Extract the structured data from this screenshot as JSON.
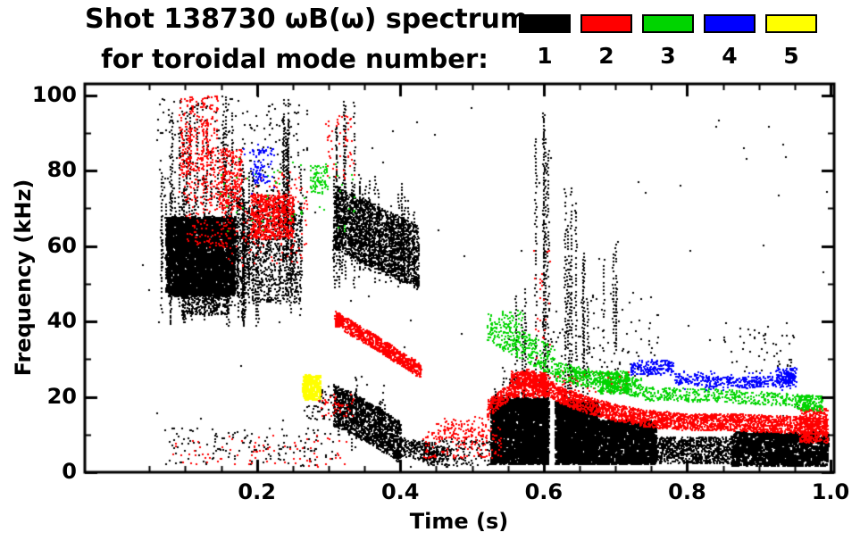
{
  "header": {
    "line1": "Shot 138730 ωB(ω) spectrum",
    "line2": "for toroidal mode number:"
  },
  "chart_data": {
    "type": "scatter",
    "subtype": "mode-spectrogram",
    "title": "Shot 138730 ωB(ω) spectrum for toroidal mode number 1-5",
    "xlabel": "Time (s)",
    "ylabel": "Frequency (kHz)",
    "xlim": [
      -0.04,
      1.005
    ],
    "ylim": [
      0,
      103
    ],
    "x_tick_values": [
      0.2,
      0.4,
      0.6,
      0.8,
      1.0
    ],
    "x_tick_labels": [
      "0.2",
      "0.4",
      "0.6",
      "0.8",
      "1.0"
    ],
    "x_minor_step": 0.05,
    "y_tick_values": [
      0,
      20,
      40,
      60,
      80,
      100
    ],
    "y_tick_labels": [
      "0",
      "20",
      "40",
      "60",
      "80",
      "100"
    ],
    "y_minor_values": [
      10,
      30,
      50,
      70,
      90
    ],
    "grid": false,
    "legend_position": "top-right",
    "series": [
      {
        "name": "toroidal mode n=1",
        "label": "1",
        "color": "#000000",
        "clusters": [
          {
            "type": "blob",
            "t": [
              0.072,
              0.168
            ],
            "f": [
              47,
              68
            ],
            "n": 2800,
            "size": 3
          },
          {
            "type": "blob",
            "t": [
              0.1,
              0.16
            ],
            "f": [
              42,
              50
            ],
            "n": 320,
            "size": 2
          },
          {
            "type": "vstreaks",
            "t": [
              0.065,
              0.265
            ],
            "f1": [
              38,
              58
            ],
            "f2": [
              60,
              82
            ],
            "k": 70,
            "size": 2
          },
          {
            "type": "vstreaks",
            "t": [
              0.08,
              0.165
            ],
            "f1": [
              68,
              80
            ],
            "f2": [
              85,
              100
            ],
            "k": 14,
            "size": 2
          },
          {
            "type": "vstreaks",
            "t": [
              0.233,
              0.25
            ],
            "f1": [
              52,
              65
            ],
            "f2": [
              88,
              100
            ],
            "k": 7,
            "size": 2
          },
          {
            "type": "dots",
            "t": [
              0.06,
              0.27
            ],
            "f": [
              72,
              100
            ],
            "n": 240,
            "size": 2
          },
          {
            "type": "blob",
            "t": [
              0.17,
              0.26
            ],
            "f": [
              45,
              72
            ],
            "n": 850,
            "size": 2
          },
          {
            "type": "dots",
            "t": [
              0.07,
              0.31
            ],
            "f": [
              1.5,
              12
            ],
            "n": 150,
            "size": 2
          },
          {
            "type": "dots",
            "t": [
              0.265,
              0.31
            ],
            "f": [
              14,
              23
            ],
            "n": 55,
            "size": 2
          },
          {
            "type": "band",
            "pts": [
              [
                0.307,
                68
              ],
              [
                0.36,
                63
              ],
              [
                0.425,
                57
              ]
            ],
            "th": 17,
            "n": 2000,
            "size": 2
          },
          {
            "type": "vstreaks",
            "t": [
              0.305,
              0.42
            ],
            "f1": [
              48,
              58
            ],
            "f2": [
              64,
              80
            ],
            "k": 40,
            "size": 2
          },
          {
            "type": "vstreaks",
            "t": [
              0.308,
              0.335
            ],
            "f1": [
              60,
              70
            ],
            "f2": [
              88,
              100
            ],
            "k": 6,
            "size": 2
          },
          {
            "type": "band",
            "pts": [
              [
                0.306,
                18
              ],
              [
                0.35,
                14
              ],
              [
                0.4,
                8
              ]
            ],
            "th": 11,
            "n": 1450,
            "size": 2
          },
          {
            "type": "band",
            "pts": [
              [
                0.4,
                7
              ],
              [
                0.468,
                4
              ]
            ],
            "th": 5,
            "n": 280,
            "size": 2
          },
          {
            "type": "vstreaks",
            "t": [
              0.31,
              0.38
            ],
            "f1": [
              6,
              12
            ],
            "f2": [
              16,
              26
            ],
            "k": 14,
            "size": 2
          },
          {
            "type": "dots",
            "t": [
              0.43,
              0.53
            ],
            "f": [
              2,
              9
            ],
            "n": 150,
            "size": 2
          },
          {
            "type": "vstreaks",
            "t": [
              0.586,
              0.608
            ],
            "f1": [
              2,
              8
            ],
            "f2": [
              85,
              100
            ],
            "k": 5,
            "size": 2
          },
          {
            "type": "vstreaks",
            "t": [
              0.558,
              0.575
            ],
            "f1": [
              3,
              20
            ],
            "f2": [
              40,
              60
            ],
            "k": 4,
            "size": 2
          },
          {
            "type": "vstreaks",
            "t": [
              0.625,
              0.65
            ],
            "f1": [
              5,
              25
            ],
            "f2": [
              55,
              78
            ],
            "k": 5,
            "size": 2
          },
          {
            "type": "vstreaks",
            "t": [
              0.652,
              0.662
            ],
            "f1": [
              15,
              30
            ],
            "f2": [
              45,
              62
            ],
            "k": 3,
            "size": 2
          },
          {
            "type": "vstreaks",
            "t": [
              0.682,
              0.702
            ],
            "f1": [
              28,
              40
            ],
            "f2": [
              52,
              66
            ],
            "k": 4,
            "size": 2
          },
          {
            "type": "blob",
            "t": [
              0.525,
              0.605
            ],
            "f": [
              2.5,
              20
            ],
            "n": 2400,
            "size": 3
          },
          {
            "type": "blob",
            "t": [
              0.615,
              0.675
            ],
            "f": [
              2.5,
              19
            ],
            "n": 2000,
            "size": 3
          },
          {
            "type": "blob",
            "t": [
              0.676,
              0.755
            ],
            "f": [
              2.5,
              14
            ],
            "n": 1300,
            "size": 3
          },
          {
            "type": "band",
            "pts": [
              [
                0.755,
                6
              ],
              [
                0.86,
                6
              ]
            ],
            "th": 7,
            "n": 800,
            "size": 2
          },
          {
            "type": "blob",
            "t": [
              0.86,
              0.995
            ],
            "f": [
              2,
              11
            ],
            "n": 1300,
            "size": 3
          },
          {
            "type": "vstreaks",
            "t": [
              0.53,
              0.6
            ],
            "f1": [
              4,
              14
            ],
            "f2": [
              16,
              28
            ],
            "k": 16,
            "size": 2
          },
          {
            "type": "dots",
            "t": [
              0.6,
              0.76
            ],
            "f": [
              24,
              48
            ],
            "n": 100,
            "size": 2
          },
          {
            "type": "dots",
            "t": [
              0.85,
              0.95
            ],
            "f": [
              27,
              40
            ],
            "n": 50,
            "size": 2
          },
          {
            "type": "dots",
            "t": [
              0.03,
              1.0
            ],
            "f": [
              1,
              100
            ],
            "n": 90,
            "size": 2
          }
        ]
      },
      {
        "name": "toroidal mode n=2",
        "label": "2",
        "color": "#ff0000",
        "clusters": [
          {
            "type": "vstreaks",
            "t": [
              0.095,
              0.14
            ],
            "f1": [
              74,
              84
            ],
            "f2": [
              88,
              100
            ],
            "k": 10,
            "size": 2
          },
          {
            "type": "dots",
            "t": [
              0.09,
              0.145
            ],
            "f": [
              74,
              100
            ],
            "n": 240,
            "size": 2
          },
          {
            "type": "blob",
            "t": [
              0.145,
              0.178
            ],
            "f": [
              70,
              86
            ],
            "n": 250,
            "size": 2
          },
          {
            "type": "blob",
            "t": [
              0.19,
              0.25
            ],
            "f": [
              62,
              74
            ],
            "n": 650,
            "size": 2
          },
          {
            "type": "dots",
            "t": [
              0.15,
              0.27
            ],
            "f": [
              55,
              80
            ],
            "n": 150,
            "size": 2
          },
          {
            "type": "dots",
            "t": [
              0.1,
              0.165
            ],
            "f": [
              60,
              74
            ],
            "n": 130,
            "size": 2
          },
          {
            "type": "dots",
            "t": [
              0.295,
              0.335
            ],
            "f": [
              78,
              95
            ],
            "n": 55,
            "size": 2
          },
          {
            "type": "dots",
            "t": [
              0.08,
              0.33
            ],
            "f": [
              1.5,
              10
            ],
            "n": 85,
            "size": 2
          },
          {
            "type": "dots",
            "t": [
              0.285,
              0.335
            ],
            "f": [
              15,
              21
            ],
            "n": 50,
            "size": 2
          },
          {
            "type": "band",
            "pts": [
              [
                0.308,
                41
              ],
              [
                0.37,
                34
              ],
              [
                0.428,
                27
              ]
            ],
            "th": 4,
            "n": 850,
            "size": 2
          },
          {
            "type": "dots",
            "t": [
              0.43,
              0.54
            ],
            "f": [
              4,
              12
            ],
            "n": 160,
            "size": 2
          },
          {
            "type": "dots",
            "t": [
              0.45,
              0.53
            ],
            "f": [
              9,
              15
            ],
            "n": 80,
            "size": 2
          },
          {
            "type": "band",
            "pts": [
              [
                0.52,
                17
              ],
              [
                0.555,
                22
              ],
              [
                0.575,
                25.5
              ],
              [
                0.6,
                23
              ],
              [
                0.63,
                20
              ],
              [
                0.66,
                18
              ],
              [
                0.7,
                16
              ],
              [
                0.74,
                14.5
              ],
              [
                0.8,
                13.5
              ],
              [
                0.86,
                13.5
              ],
              [
                0.92,
                13
              ],
              [
                0.995,
                12.5
              ]
            ],
            "th": 4.5,
            "n": 2800,
            "size": 2
          },
          {
            "type": "blob",
            "t": [
              0.553,
              0.603
            ],
            "f": [
              20,
              27
            ],
            "n": 400,
            "size": 2
          },
          {
            "type": "blob",
            "t": [
              0.955,
              0.995
            ],
            "f": [
              8,
              17
            ],
            "n": 360,
            "size": 2
          },
          {
            "type": "dots",
            "t": [
              0.6,
              0.72
            ],
            "f": [
              21,
              27
            ],
            "n": 90,
            "size": 2
          },
          {
            "type": "dots",
            "t": [
              0.585,
              0.61
            ],
            "f": [
              28,
              60
            ],
            "n": 28,
            "size": 2
          }
        ]
      },
      {
        "name": "toroidal mode n=3",
        "label": "3",
        "color": "#00d400",
        "clusters": [
          {
            "type": "dots",
            "t": [
              0.14,
              0.34
            ],
            "f": [
              64,
              84
            ],
            "n": 55,
            "size": 2
          },
          {
            "type": "blob",
            "t": [
              0.273,
              0.298
            ],
            "f": [
              74,
              82
            ],
            "n": 75,
            "size": 2
          },
          {
            "type": "band",
            "pts": [
              [
                0.52,
                39
              ],
              [
                0.565,
                34
              ],
              [
                0.615,
                29.5
              ]
            ],
            "th": 8,
            "n": 300,
            "size": 2
          },
          {
            "type": "dots",
            "t": [
              0.54,
              0.57
            ],
            "f": [
              37,
              43
            ],
            "n": 45,
            "size": 2
          },
          {
            "type": "band",
            "pts": [
              [
                0.615,
                27
              ],
              [
                0.68,
                24.5
              ],
              [
                0.735,
                22.5
              ]
            ],
            "th": 5,
            "n": 420,
            "size": 2
          },
          {
            "type": "blob",
            "t": [
              0.675,
              0.718
            ],
            "f": [
              21,
              27
            ],
            "n": 250,
            "size": 2
          },
          {
            "type": "band",
            "pts": [
              [
                0.735,
                21
              ],
              [
                0.85,
                20.5
              ],
              [
                0.97,
                19
              ]
            ],
            "th": 3.5,
            "n": 430,
            "size": 2
          },
          {
            "type": "blob",
            "t": [
              0.952,
              0.988
            ],
            "f": [
              16.5,
              20.5
            ],
            "n": 140,
            "size": 2
          }
        ]
      },
      {
        "name": "toroidal mode n=4",
        "label": "4",
        "color": "#0000ff",
        "clusters": [
          {
            "type": "blob",
            "t": [
              0.193,
              0.215
            ],
            "f": [
              77,
              86
            ],
            "n": 70,
            "size": 2
          },
          {
            "type": "dots",
            "t": [
              0.18,
              0.225
            ],
            "f": [
              74,
              88
            ],
            "n": 28,
            "size": 2
          },
          {
            "type": "blob",
            "t": [
              0.72,
              0.78
            ],
            "f": [
              26,
              30
            ],
            "n": 180,
            "size": 2
          },
          {
            "type": "band",
            "pts": [
              [
                0.78,
                25
              ],
              [
                0.86,
                24
              ],
              [
                0.95,
                24.5
              ]
            ],
            "th": 3,
            "n": 300,
            "size": 2
          },
          {
            "type": "blob",
            "t": [
              0.923,
              0.952
            ],
            "f": [
              24,
              28
            ],
            "n": 120,
            "size": 2
          },
          {
            "type": "dots",
            "t": [
              0.79,
              0.95
            ],
            "f": [
              22,
              27
            ],
            "n": 70,
            "size": 2
          }
        ]
      },
      {
        "name": "toroidal mode n=5",
        "label": "5",
        "color": "#ffff00",
        "clusters": [
          {
            "type": "blob",
            "t": [
              0.262,
              0.287
            ],
            "f": [
              19.5,
              26
            ],
            "n": 170,
            "size": 3
          }
        ]
      }
    ]
  }
}
